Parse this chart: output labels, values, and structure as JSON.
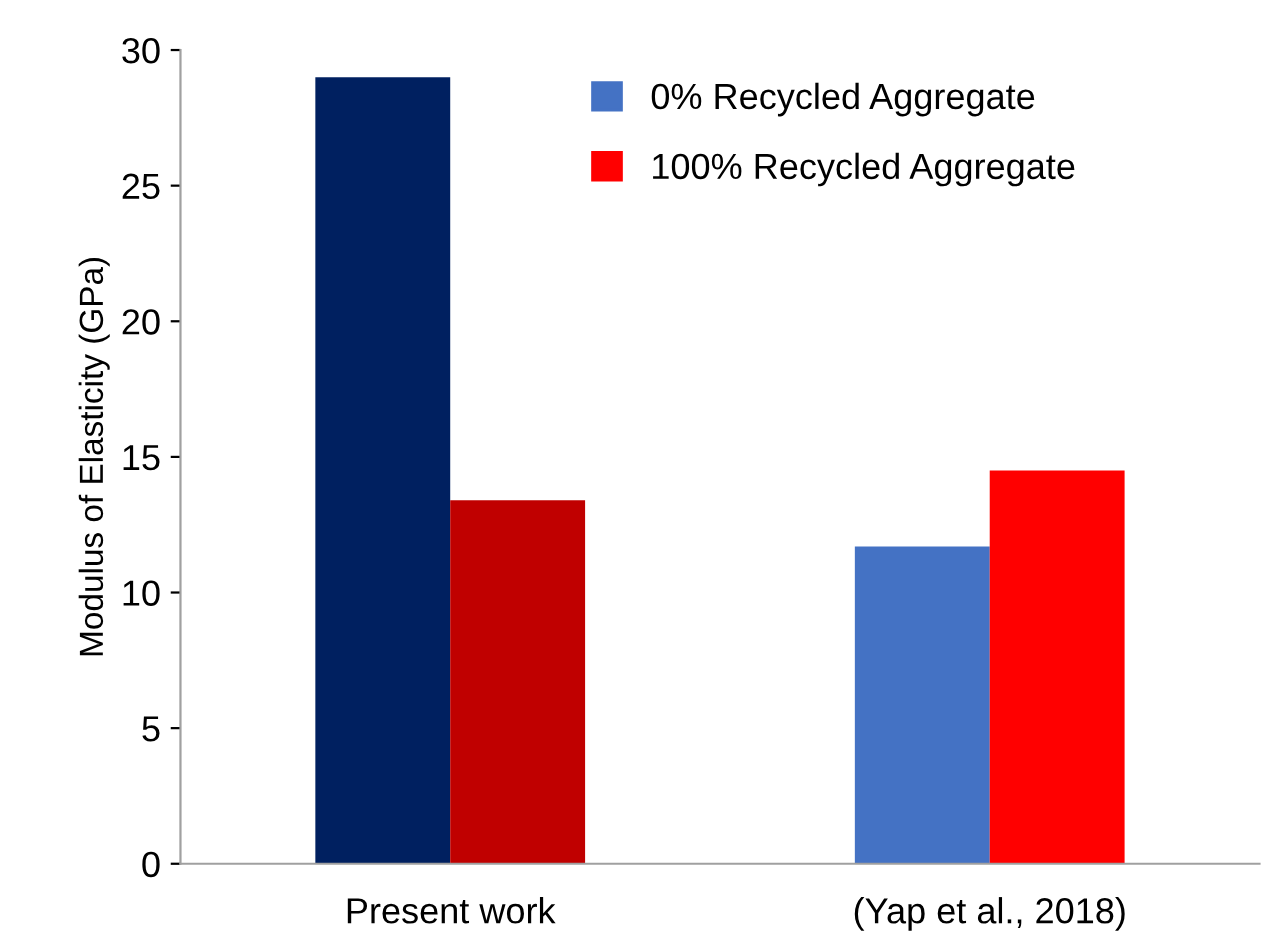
{
  "chart_data": {
    "type": "bar",
    "ylabel": "Modulus of Elasticity (GPa)",
    "categories": [
      "Present work",
      "(Yap et al., 2018)"
    ],
    "series": [
      {
        "name": "0% Recycled Aggregate",
        "color": "#4472c4",
        "colors": [
          "#002060",
          "#4472c4"
        ],
        "values": [
          29.0,
          11.7
        ]
      },
      {
        "name": "100% Recycled Aggregate",
        "color": "#ff0000",
        "colors": [
          "#c00000",
          "#ff0000"
        ],
        "values": [
          13.4,
          14.5
        ]
      }
    ],
    "ylim": [
      0,
      30
    ],
    "yticks": [
      0,
      5,
      10,
      15,
      20,
      25,
      30
    ],
    "grid": false,
    "legend": "top right"
  }
}
